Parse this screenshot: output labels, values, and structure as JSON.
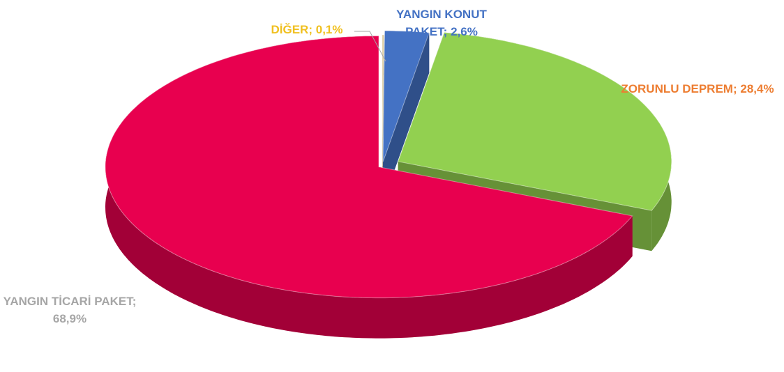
{
  "chart_data": {
    "type": "pie",
    "categories": [
      "DİĞER",
      "YANGIN KONUT PAKET",
      "ZORUNLU DEPREM",
      "YANGIN TİCARİ PAKET"
    ],
    "values": [
      0.1,
      2.6,
      28.4,
      68.9
    ],
    "value_labels": [
      "0,1%",
      "2,6%",
      "28,4%",
      "68,9%"
    ],
    "label_separator": ";",
    "colors": [
      "#d9c89a",
      "#4472c4",
      "#92d050",
      "#e8004f"
    ],
    "label_colors": [
      "#f0c020",
      "#4472c4",
      "#ed7d31",
      "#a6a6a6"
    ]
  }
}
